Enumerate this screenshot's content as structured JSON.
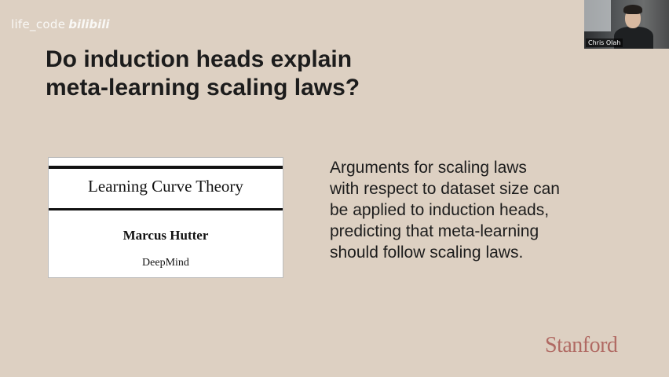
{
  "watermark": {
    "text": "life_code",
    "brand": "bilibili"
  },
  "slide": {
    "title_lines": [
      "Do induction heads explain",
      "meta-learning scaling laws?"
    ],
    "paper": {
      "title": "Learning Curve Theory",
      "author": "Marcus Hutter",
      "affiliation": "DeepMind"
    },
    "body_lines": [
      "Arguments for scaling laws",
      "with respect to dataset size can",
      "be applied to induction heads,",
      "predicting that meta-learning",
      "should follow scaling laws."
    ],
    "logo": "Stanford"
  },
  "webcam": {
    "name": "Chris Olah"
  },
  "colors": {
    "background": "#ddd0c2",
    "logo": "#8c1515",
    "text": "#1c1c1c"
  }
}
